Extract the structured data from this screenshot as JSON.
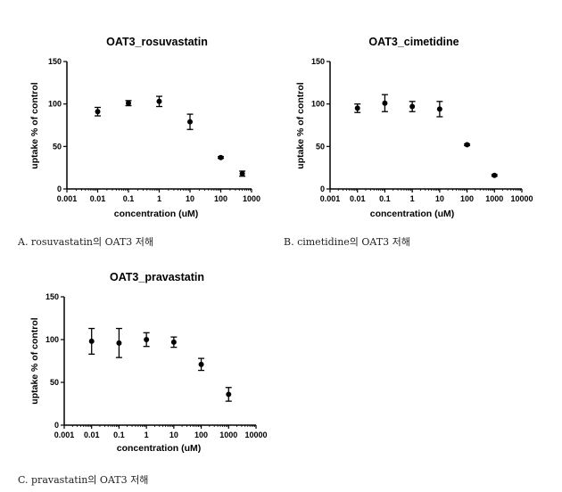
{
  "colors": {
    "ink": "#000000",
    "background": "#ffffff"
  },
  "chart_data": [
    {
      "type": "scatter",
      "title": "OAT3_rosuvastatin",
      "xlabel": "concentration (uM)",
      "ylabel": "uptake % of control",
      "xscale": "log",
      "xlim": [
        0.001,
        1000
      ],
      "ylim": [
        0,
        150
      ],
      "xticks": [
        "0.001",
        "0.01",
        "0.1",
        "1",
        "10",
        "100",
        "1000"
      ],
      "yticks": [
        "0",
        "50",
        "100",
        "150"
      ],
      "points": [
        {
          "x": 0.01,
          "y": 91,
          "err": 5
        },
        {
          "x": 0.1,
          "y": 101,
          "err": 3
        },
        {
          "x": 1,
          "y": 103,
          "err": 6
        },
        {
          "x": 10,
          "y": 79,
          "err": 9
        },
        {
          "x": 100,
          "y": 37,
          "err": 1
        },
        {
          "x": 500,
          "y": 18,
          "err": 3
        }
      ],
      "caption": "A. rosuvastatin의 OAT3 저해"
    },
    {
      "type": "scatter",
      "title": "OAT3_cimetidine",
      "xlabel": "concentration (uM)",
      "ylabel": "uptake % of control",
      "xscale": "log",
      "xlim": [
        0.001,
        10000
      ],
      "ylim": [
        0,
        150
      ],
      "xticks": [
        "0.001",
        "0.01",
        "0.1",
        "1",
        "10",
        "100",
        "1000",
        "10000"
      ],
      "yticks": [
        "0",
        "50",
        "100",
        "150"
      ],
      "points": [
        {
          "x": 0.01,
          "y": 95,
          "err": 5
        },
        {
          "x": 0.1,
          "y": 101,
          "err": 10
        },
        {
          "x": 1,
          "y": 97,
          "err": 6
        },
        {
          "x": 10,
          "y": 94,
          "err": 9
        },
        {
          "x": 100,
          "y": 52,
          "err": 1
        },
        {
          "x": 1000,
          "y": 16,
          "err": 1
        }
      ],
      "caption": "B. cimetidine의 OAT3 저해"
    },
    {
      "type": "scatter",
      "title": "OAT3_pravastatin",
      "xlabel": "concentration (uM)",
      "ylabel": "uptake % of control",
      "xscale": "log",
      "xlim": [
        0.001,
        10000
      ],
      "ylim": [
        0,
        150
      ],
      "xticks": [
        "0.001",
        "0.01",
        "0.1",
        "1",
        "10",
        "100",
        "1000",
        "10000"
      ],
      "yticks": [
        "0",
        "50",
        "100",
        "150"
      ],
      "points": [
        {
          "x": 0.01,
          "y": 98,
          "err": 15
        },
        {
          "x": 0.1,
          "y": 96,
          "err": 17
        },
        {
          "x": 1,
          "y": 100,
          "err": 8
        },
        {
          "x": 10,
          "y": 97,
          "err": 6
        },
        {
          "x": 100,
          "y": 71,
          "err": 7
        },
        {
          "x": 1000,
          "y": 36,
          "err": 8
        }
      ],
      "caption": "C. pravastatin의 OAT3 저해"
    }
  ]
}
